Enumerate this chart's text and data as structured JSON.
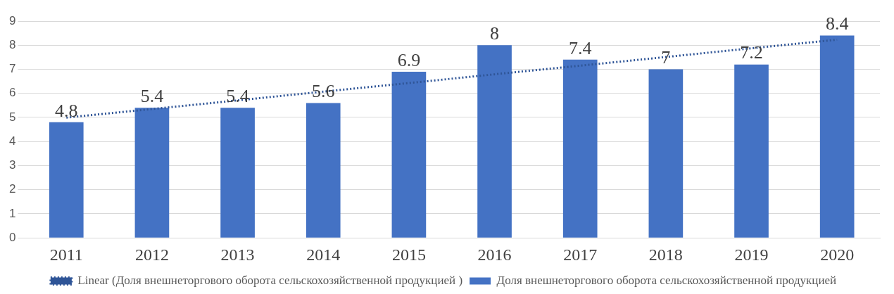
{
  "chart_data": {
    "type": "bar",
    "categories": [
      "2011",
      "2012",
      "2013",
      "2014",
      "2015",
      "2016",
      "2017",
      "2018",
      "2019",
      "2020"
    ],
    "series": [
      {
        "name": "Доля внешнеторгового оборота сельскохозяйственной продукцией",
        "color": "#4472c4",
        "values": [
          4.8,
          5.4,
          5.4,
          5.6,
          6.9,
          8,
          7.4,
          7,
          7.2,
          8.4
        ],
        "value_labels": [
          "4.8",
          "5.4",
          "5.4",
          "5.6",
          "6.9",
          "8",
          "7.4",
          "7",
          "7.2",
          "8.4"
        ]
      },
      {
        "name": "Linear (Доля внешнеторгового оборота сельскохозяйственной продукцией )",
        "type": "line",
        "color": "#2f5597",
        "line_style": "dotted",
        "marker": "none",
        "values": [
          4.99,
          5.35,
          5.71,
          6.07,
          6.43,
          6.79,
          7.15,
          7.51,
          7.87,
          8.23
        ]
      }
    ],
    "ylim": [
      0,
      9
    ],
    "yticks": [
      0,
      1,
      2,
      3,
      4,
      5,
      6,
      7,
      8,
      9
    ],
    "grid": "y",
    "legend": "bottom"
  }
}
